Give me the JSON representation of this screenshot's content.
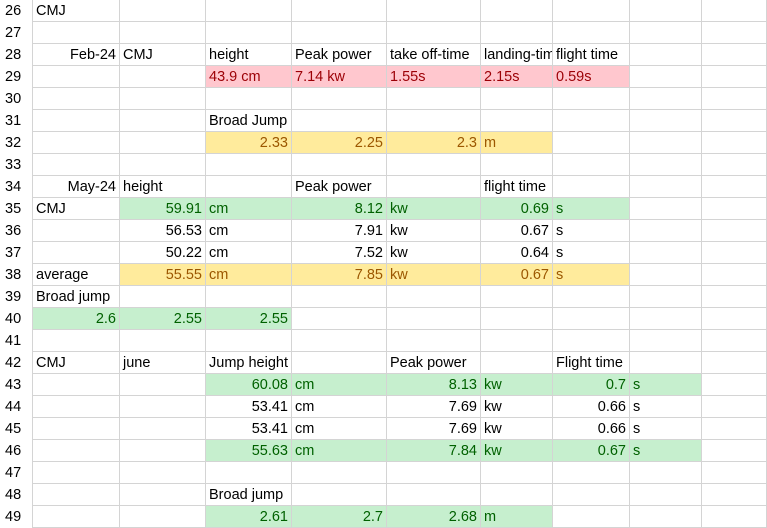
{
  "sheet": {
    "row_numbers": [
      "26",
      "27",
      "28",
      "29",
      "30",
      "31",
      "32",
      "33",
      "34",
      "35",
      "36",
      "37",
      "38",
      "39",
      "40",
      "41",
      "42",
      "43",
      "44",
      "45",
      "46",
      "47",
      "48",
      "49"
    ],
    "title_cmj": "CMJ",
    "feb": {
      "date": "Feb-24",
      "label": "CMJ",
      "headers": [
        "height",
        "Peak power",
        "take off-time",
        "landing-time",
        "flight time"
      ],
      "values": [
        "43.9 cm",
        "7.14 kw",
        "1.55s",
        "2.15s",
        "0.59s"
      ],
      "broad_label": "Broad Jump",
      "broad_values": [
        "2.33",
        "2.25",
        "2.3"
      ],
      "broad_unit": "m"
    },
    "may": {
      "date": "May-24",
      "h_height": "height",
      "h_power": "Peak power",
      "h_flight": "flight time",
      "row_label_cmj": "CMJ",
      "rows": [
        {
          "height": "59.91",
          "hu": "cm",
          "power": "8.12",
          "pu": "kw",
          "flight": "0.69",
          "fu": "s"
        },
        {
          "height": "56.53",
          "hu": "cm",
          "power": "7.91",
          "pu": "kw",
          "flight": "0.67",
          "fu": "s"
        },
        {
          "height": "50.22",
          "hu": "cm",
          "power": "7.52",
          "pu": "kw",
          "flight": "0.64",
          "fu": "s"
        }
      ],
      "avg_label": "average",
      "avg": {
        "height": "55.55",
        "hu": "cm",
        "power": "7.85",
        "pu": "kw",
        "flight": "0.67",
        "fu": "s"
      },
      "broad_label": "Broad jump",
      "broad_values": [
        "2.6",
        "2.55",
        "2.55"
      ]
    },
    "june": {
      "label_cmj": "CMJ",
      "label_month": "june",
      "h_height": "Jump height",
      "h_power": "Peak power",
      "h_flight": "Flight time",
      "rows": [
        {
          "height": "60.08",
          "hu": "cm",
          "power": "8.13",
          "pu": "kw",
          "flight": "0.7",
          "fu": "s"
        },
        {
          "height": "53.41",
          "hu": "cm",
          "power": "7.69",
          "pu": "kw",
          "flight": "0.66",
          "fu": "s"
        },
        {
          "height": "53.41",
          "hu": "cm",
          "power": "7.69",
          "pu": "kw",
          "flight": "0.66",
          "fu": "s"
        },
        {
          "height": "55.63",
          "hu": "cm",
          "power": "7.84",
          "pu": "kw",
          "flight": "0.67",
          "fu": "s"
        }
      ],
      "broad_label": "Broad jump",
      "broad_values": [
        "2.61",
        "2.7",
        "2.68"
      ],
      "broad_unit": "m"
    }
  },
  "colors": {
    "pink_fill": "#ffc7ce",
    "pink_text": "#9c0006",
    "yellow_fill": "#ffeb9c",
    "yellow_text": "#9c5700",
    "green_fill": "#c6efce",
    "green_text": "#006100",
    "gridline": "#d4d4d4"
  }
}
